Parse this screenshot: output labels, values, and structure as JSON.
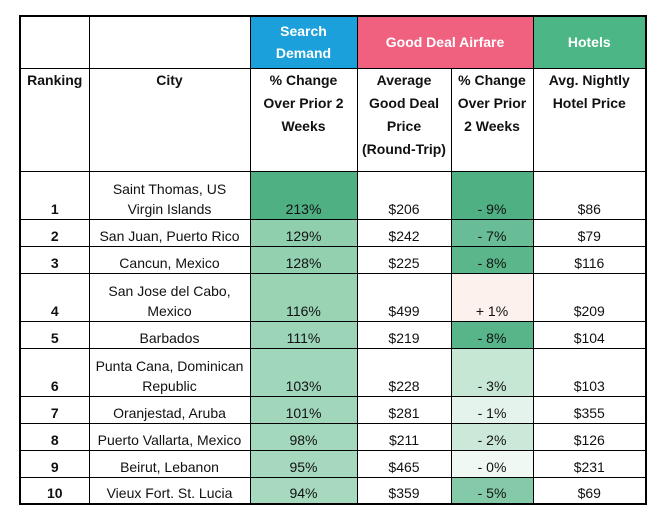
{
  "chart_data": {
    "type": "table",
    "text_color": "#111111",
    "border_color": "#000000",
    "column_groups": [
      {
        "label": "Search Demand",
        "color": "#1BA0DC",
        "span": 1
      },
      {
        "label": "Good Deal Airfare",
        "color": "#F0617F",
        "span": 2
      },
      {
        "label": "Hotels",
        "color": "#4DB687",
        "span": 1
      }
    ],
    "columns": [
      "Ranking",
      "City",
      "% Change Over Prior 2 Weeks",
      "Average Good Deal Price (Round-Trip)",
      "% Change Over Prior 2 Weeks",
      "Avg. Nightly Hotel Price"
    ],
    "rows": [
      {
        "rank": "1",
        "city": "Saint Thomas, US Virgin Islands",
        "search_change": "213%",
        "search_bg": "#4FB084",
        "airfare_price": "$206",
        "airfare_change": "- 9%",
        "airfare_bg": "#4FB084",
        "hotel_price": "$86",
        "tall": true
      },
      {
        "rank": "2",
        "city": "San Juan, Puerto Rico",
        "search_change": "129%",
        "search_bg": "#90CFAE",
        "airfare_price": "$242",
        "airfare_change": "- 7%",
        "airfare_bg": "#68BD96",
        "hotel_price": "$79",
        "tall": false
      },
      {
        "rank": "3",
        "city": "Cancun, Mexico",
        "search_change": "128%",
        "search_bg": "#92D0B0",
        "airfare_price": "$225",
        "airfare_change": "- 8%",
        "airfare_bg": "#5BB68B",
        "hotel_price": "$116",
        "tall": false
      },
      {
        "rank": "4",
        "city": "San Jose del Cabo, Mexico",
        "search_change": "116%",
        "search_bg": "#99D3B4",
        "airfare_price": "$499",
        "airfare_change": "+ 1%",
        "airfare_bg": "#FDF1EE",
        "hotel_price": "$209",
        "tall": true
      },
      {
        "rank": "5",
        "city": "Barbados",
        "search_change": "111%",
        "search_bg": "#9BD4B6",
        "airfare_price": "$219",
        "airfare_change": "- 8%",
        "airfare_bg": "#58B489",
        "hotel_price": "$104",
        "tall": false
      },
      {
        "rank": "6",
        "city": "Punta Cana, Dominican Republic",
        "search_change": "103%",
        "search_bg": "#A0D6B9",
        "airfare_price": "$228",
        "airfare_change": "- 3%",
        "airfare_bg": "#C7E7D5",
        "hotel_price": "$103",
        "tall": true
      },
      {
        "rank": "7",
        "city": "Oranjestad, Aruba",
        "search_change": "101%",
        "search_bg": "#A1D6BA",
        "airfare_price": "$281",
        "airfare_change": "- 1%",
        "airfare_bg": "#E4F3EB",
        "hotel_price": "$355",
        "tall": false
      },
      {
        "rank": "8",
        "city": "Puerto Vallarta, Mexico",
        "search_change": "98%",
        "search_bg": "#A4D8BC",
        "airfare_price": "$211",
        "airfare_change": "- 2%",
        "airfare_bg": "#CBE8D8",
        "hotel_price": "$126",
        "tall": false
      },
      {
        "rank": "9",
        "city": "Beirut, Lebanon",
        "search_change": "95%",
        "search_bg": "#A5D8BD",
        "airfare_price": "$465",
        "airfare_change": "- 0%",
        "airfare_bg": "#EFF8F3",
        "hotel_price": "$231",
        "tall": false
      },
      {
        "rank": "10",
        "city": "Vieux Fort. St. Lucia",
        "search_change": "94%",
        "search_bg": "#A6D9BD",
        "airfare_price": "$359",
        "airfare_change": "- 5%",
        "airfare_bg": "#85CAA8",
        "hotel_price": "$69",
        "tall": false
      }
    ]
  }
}
